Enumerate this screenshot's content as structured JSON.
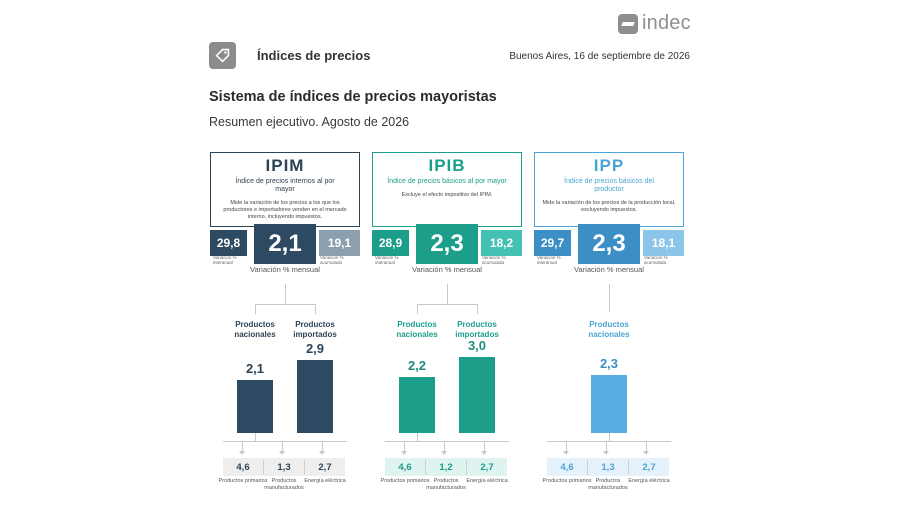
{
  "brand": {
    "logo_text": "indec"
  },
  "header": {
    "section_title": "Índices de precios",
    "date": "Buenos Aires, 16 de septiembre de 2026",
    "title": "Sistema de índices de precios mayoristas",
    "subtitle": "Resumen ejecutivo. Agosto de 2026"
  },
  "panels": [
    {
      "name": "IPIM",
      "long_name": "Índice de precios internos al por mayor",
      "description": "Mide la variación de los precios a los que los productores e importadores venden en el mercado interno, incluyendo impuestos.",
      "interannual": "29,8",
      "interannual_label": "Variación % interanual",
      "monthly": "2,1",
      "monthly_label": "Variación % mensual",
      "accumulated": "19,1",
      "accumulated_label": "Variación % acumulada",
      "products": [
        {
          "label": "Productos nacionales",
          "value": "2,1",
          "bar_value": 2.1
        },
        {
          "label": "Productos importados",
          "value": "2,9",
          "bar_value": 2.9
        }
      ],
      "breakdown": [
        {
          "value": "4,6",
          "label": "Productos primarios"
        },
        {
          "value": "1,3",
          "label": "Productos manufacturados"
        },
        {
          "value": "2,7",
          "label": "Energía eléctrica"
        }
      ]
    },
    {
      "name": "IPIB",
      "long_name": "Índice de precios básicos al por mayor",
      "description": "Excluye el efecto impositivo del IPIM.",
      "interannual": "28,9",
      "interannual_label": "Variación % interanual",
      "monthly": "2,3",
      "monthly_label": "Variación % mensual",
      "accumulated": "18,2",
      "accumulated_label": "Variación % acumulada",
      "products": [
        {
          "label": "Productos nacionales",
          "value": "2,2",
          "bar_value": 2.2
        },
        {
          "label": "Productos importados",
          "value": "3,0",
          "bar_value": 3.0
        }
      ],
      "breakdown": [
        {
          "value": "4,6",
          "label": "Productos primarios"
        },
        {
          "value": "1,2",
          "label": "Productos manufacturados"
        },
        {
          "value": "2,7",
          "label": "Energía eléctrica"
        }
      ]
    },
    {
      "name": "IPP",
      "long_name": "Índice de precios básicos del productor",
      "description": "Mide la variación de los precios de la producción local, excluyendo impuestos.",
      "interannual": "29,7",
      "interannual_label": "Variación % interanual",
      "monthly": "2,3",
      "monthly_label": "Variación % mensual",
      "accumulated": "18,1",
      "accumulated_label": "Variación % acumulada",
      "products": [
        {
          "label": "Productos nacionales",
          "value": "2,3",
          "bar_value": 2.3
        }
      ],
      "breakdown": [
        {
          "value": "4,6",
          "label": "Productos primarios"
        },
        {
          "value": "1,3",
          "label": "Productos manufacturados"
        },
        {
          "value": "2,7",
          "label": "Energía eléctrica"
        }
      ]
    }
  ]
}
